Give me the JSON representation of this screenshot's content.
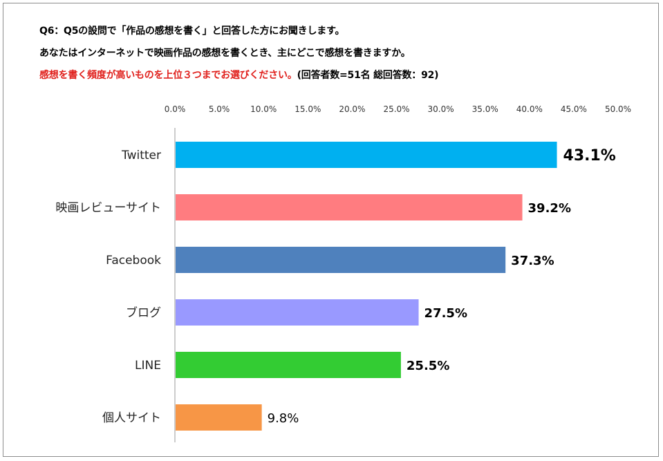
{
  "header": {
    "line1": "Q6：Q5の設問で「作品の感想を書く」と回答した方にお聞きします。",
    "line2": "あなたはインターネットで映画作品の感想を書くとき、主にどこで感想を書きますか。",
    "line3_red": "感想を書く頻度が高いものを上位３つまでお選びください。",
    "line3_note": "(回答者数=51名 総回答数：92)"
  },
  "chart_data": {
    "type": "bar",
    "orientation": "horizontal",
    "categories": [
      "Twitter",
      "映画レビューサイト",
      "Facebook",
      "ブログ",
      "LINE",
      "個人サイト"
    ],
    "values": [
      43.1,
      39.2,
      37.3,
      27.5,
      25.5,
      9.8
    ],
    "value_labels": [
      "43.1%",
      "39.2%",
      "37.3%",
      "27.5%",
      "25.5%",
      "9.8%"
    ],
    "colors": [
      "#00b0f0",
      "#ff7c80",
      "#4f81bd",
      "#9999ff",
      "#33cc33",
      "#f79646"
    ],
    "xlim": [
      0,
      50
    ],
    "ticks": [
      "0.0%",
      "5.0%",
      "10.0%",
      "15.0%",
      "20.0%",
      "25.0%",
      "30.0%",
      "35.0%",
      "40.0%",
      "45.0%",
      "50.0%"
    ],
    "axis_position": "top",
    "grid": false,
    "legend": false
  }
}
